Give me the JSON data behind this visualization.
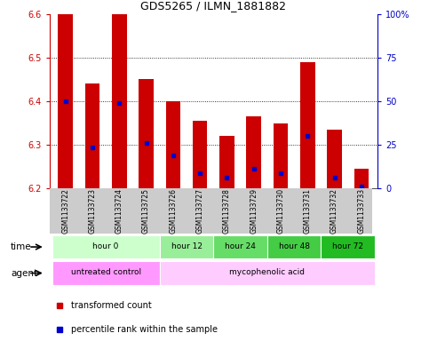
{
  "title": "GDS5265 / ILMN_1881882",
  "samples": [
    "GSM1133722",
    "GSM1133723",
    "GSM1133724",
    "GSM1133725",
    "GSM1133726",
    "GSM1133727",
    "GSM1133728",
    "GSM1133729",
    "GSM1133730",
    "GSM1133731",
    "GSM1133732",
    "GSM1133733"
  ],
  "bar_tops": [
    6.6,
    6.44,
    6.6,
    6.45,
    6.4,
    6.355,
    6.32,
    6.365,
    6.35,
    6.49,
    6.335,
    6.245
  ],
  "percentile_values": [
    6.4,
    6.295,
    6.395,
    6.305,
    6.275,
    6.235,
    6.225,
    6.245,
    6.235,
    6.32,
    6.225,
    6.205
  ],
  "bar_color": "#cc0000",
  "percentile_color": "#0000cc",
  "bar_bottom": 6.2,
  "ylim": [
    6.2,
    6.6
  ],
  "yticks_left": [
    6.2,
    6.3,
    6.4,
    6.5,
    6.6
  ],
  "yticks_right_vals": [
    0,
    25,
    50,
    75,
    100
  ],
  "yticks_right_pos": [
    6.2,
    6.3,
    6.4,
    6.5,
    6.6
  ],
  "time_groups": [
    {
      "label": "hour 0",
      "start": 0,
      "end": 3,
      "color": "#ccffcc"
    },
    {
      "label": "hour 12",
      "start": 4,
      "end": 5,
      "color": "#99ee99"
    },
    {
      "label": "hour 24",
      "start": 6,
      "end": 7,
      "color": "#66dd66"
    },
    {
      "label": "hour 48",
      "start": 8,
      "end": 9,
      "color": "#44cc44"
    },
    {
      "label": "hour 72",
      "start": 10,
      "end": 11,
      "color": "#22bb22"
    }
  ],
  "agent_groups": [
    {
      "label": "untreated control",
      "start": 0,
      "end": 3,
      "color": "#ff99ff"
    },
    {
      "label": "mycophenolic acid",
      "start": 4,
      "end": 11,
      "color": "#ffccff"
    }
  ],
  "legend_items": [
    {
      "color": "#cc0000",
      "label": "transformed count"
    },
    {
      "color": "#0000cc",
      "label": "percentile rank within the sample"
    }
  ],
  "bar_width": 0.55,
  "bg_color": "#ffffff",
  "plot_bg": "#ffffff",
  "left_axis_color": "#cc0000",
  "right_axis_color": "#0000cc",
  "sample_bg_color": "#cccccc",
  "time_colors": [
    "#ccffcc",
    "#99ee99",
    "#66dd66",
    "#44cc44",
    "#22bb22"
  ],
  "agent_colors": [
    "#ff99ff",
    "#ffccff"
  ]
}
